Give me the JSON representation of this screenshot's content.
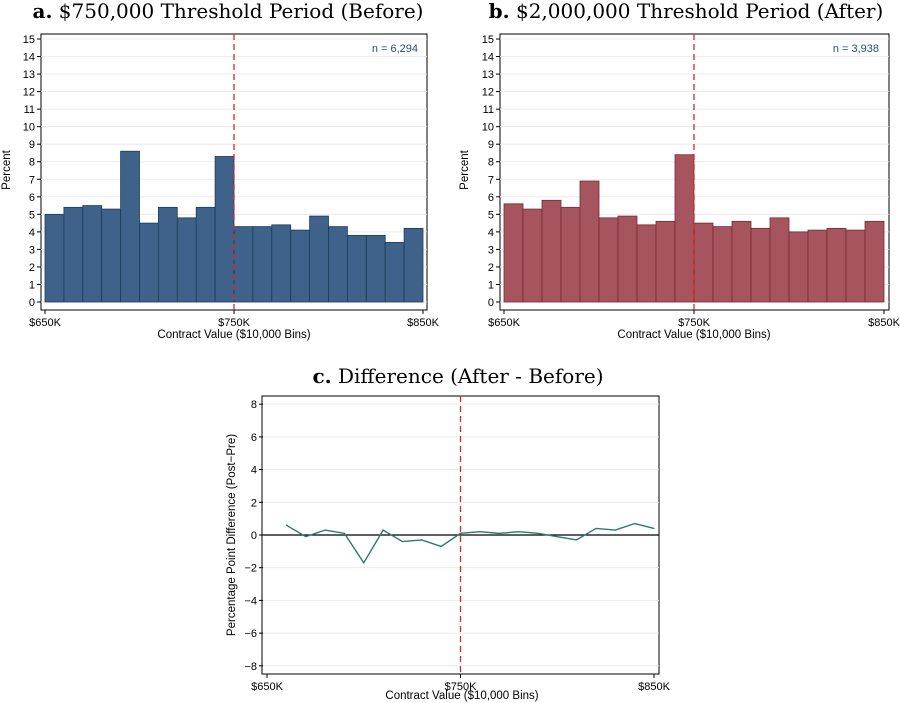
{
  "chart_data": [
    {
      "type": "bar",
      "panel": "a.",
      "title": "$750,000 Threshold Period (Before)",
      "xlabel": "Contract Value ($10,000 Bins)",
      "ylabel": "Percent",
      "xlim": [
        650,
        850
      ],
      "ylim": [
        0,
        15
      ],
      "yticks": [
        0,
        1,
        2,
        3,
        4,
        5,
        6,
        7,
        8,
        9,
        10,
        11,
        12,
        13,
        14,
        15
      ],
      "xticks": [
        {
          "value": 650,
          "label": "$650K"
        },
        {
          "value": 750,
          "label": "$750K"
        },
        {
          "value": 850,
          "label": "$850K"
        }
      ],
      "threshold": 750,
      "annotation": "n = 6,294",
      "bin_width": 10,
      "x": [
        650,
        660,
        670,
        680,
        690,
        700,
        710,
        720,
        730,
        740,
        750,
        760,
        770,
        780,
        790,
        800,
        810,
        820,
        830,
        840
      ],
      "values": [
        5.0,
        5.4,
        5.5,
        5.3,
        8.6,
        4.5,
        5.4,
        4.8,
        5.4,
        8.3,
        4.3,
        4.3,
        4.4,
        4.1,
        4.9,
        4.3,
        3.8,
        3.8,
        3.4,
        4.2
      ],
      "color": "#3e6289",
      "edge_color": "#1f3b5a",
      "grid": true
    },
    {
      "type": "bar",
      "panel": "b.",
      "title": "$2,000,000 Threshold Period (After)",
      "xlabel": "Contract Value ($10,000 Bins)",
      "ylabel": "Percent",
      "xlim": [
        650,
        850
      ],
      "ylim": [
        0,
        15
      ],
      "yticks": [
        0,
        1,
        2,
        3,
        4,
        5,
        6,
        7,
        8,
        9,
        10,
        11,
        12,
        13,
        14,
        15
      ],
      "xticks": [
        {
          "value": 650,
          "label": "$650K"
        },
        {
          "value": 750,
          "label": "$750K"
        },
        {
          "value": 850,
          "label": "$850K"
        }
      ],
      "threshold": 750,
      "annotation": "n = 3,938",
      "bin_width": 10,
      "x": [
        650,
        660,
        670,
        680,
        690,
        700,
        710,
        720,
        730,
        740,
        750,
        760,
        770,
        780,
        790,
        800,
        810,
        820,
        830,
        840
      ],
      "values": [
        5.6,
        5.3,
        5.8,
        5.4,
        6.9,
        4.8,
        4.9,
        4.4,
        4.6,
        8.4,
        4.5,
        4.3,
        4.6,
        4.2,
        4.8,
        4.0,
        4.1,
        4.2,
        4.1,
        4.6
      ],
      "color": "#a6545d",
      "edge_color": "#7a2a33",
      "grid": true
    },
    {
      "type": "line",
      "panel": "c.",
      "title": "Difference (After - Before)",
      "xlabel": "Contract Value ($10,000 Bins)",
      "ylabel": "Percentage Point Difference (Post−Pre)",
      "xlim": [
        650,
        850
      ],
      "ylim": [
        -8.5,
        8.5
      ],
      "yticks": [
        {
          "value": -8,
          "label": "−8"
        },
        {
          "value": -6,
          "label": "−6"
        },
        {
          "value": -4,
          "label": "−4"
        },
        {
          "value": -2,
          "label": "−2"
        },
        {
          "value": 0,
          "label": "0"
        },
        {
          "value": 2,
          "label": "2"
        },
        {
          "value": 4,
          "label": "4"
        },
        {
          "value": 6,
          "label": "6"
        },
        {
          "value": 8,
          "label": "8"
        }
      ],
      "xticks": [
        {
          "value": 650,
          "label": "$650K"
        },
        {
          "value": 750,
          "label": "$750K"
        },
        {
          "value": 850,
          "label": "$850K"
        }
      ],
      "threshold": 750,
      "zero_line": true,
      "x": [
        660,
        670,
        680,
        690,
        700,
        710,
        720,
        730,
        740,
        750,
        760,
        770,
        780,
        790,
        800,
        810,
        820,
        830,
        840,
        850
      ],
      "values": [
        0.6,
        -0.1,
        0.3,
        0.1,
        -1.7,
        0.3,
        -0.4,
        -0.3,
        -0.7,
        0.1,
        0.2,
        0.1,
        0.2,
        0.1,
        -0.1,
        -0.3,
        0.4,
        0.3,
        0.7,
        0.4
      ],
      "color": "#2a7b6f",
      "grid": true
    }
  ]
}
